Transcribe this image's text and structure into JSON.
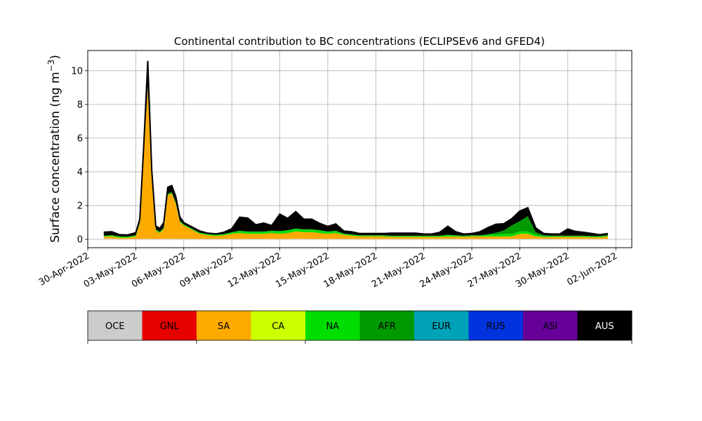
{
  "chart_data": {
    "type": "area",
    "title": "Continental contribution to BC concentrations (ECLIPSEv6 and GFED4)",
    "ylabel": "Surface concentration (ng m⁻³)",
    "ylabel_main": "Surface concentration (ng m",
    "ylabel_exp": "−3",
    "ylabel_close": ")",
    "xlabel": "",
    "ylim": [
      -0.5,
      11.2
    ],
    "yticks": [
      0,
      2,
      4,
      6,
      8,
      10
    ],
    "xlim": [
      "2022-04-30T00:00",
      "2022-06-03T00:00"
    ],
    "xticks": [
      "2022-04-30",
      "2022-05-03",
      "2022-05-06",
      "2022-05-09",
      "2022-05-12",
      "2022-05-15",
      "2022-05-18",
      "2022-05-21",
      "2022-05-24",
      "2022-05-27",
      "2022-05-30",
      "2022-06-02"
    ],
    "xtick_labels": [
      "30-Apr-2022",
      "03-May-2022",
      "06-May-2022",
      "09-May-2022",
      "12-May-2022",
      "15-May-2022",
      "18-May-2022",
      "21-May-2022",
      "24-May-2022",
      "27-May-2022",
      "30-May-2022",
      "02-Jun-2022"
    ],
    "grid": true,
    "stacking_note": "stacked from bottom",
    "x": [
      "2022-05-01T00:00",
      "2022-05-01T12:00",
      "2022-05-02T00:00",
      "2022-05-02T12:00",
      "2022-05-03T00:00",
      "2022-05-03T06:00",
      "2022-05-03T12:00",
      "2022-05-03T18:00",
      "2022-05-04T00:00",
      "2022-05-04T06:00",
      "2022-05-04T12:00",
      "2022-05-04T18:00",
      "2022-05-05T00:00",
      "2022-05-05T06:00",
      "2022-05-05T12:00",
      "2022-05-05T18:00",
      "2022-05-06T00:00",
      "2022-05-06T12:00",
      "2022-05-07T00:00",
      "2022-05-07T12:00",
      "2022-05-08T00:00",
      "2022-05-08T12:00",
      "2022-05-09T00:00",
      "2022-05-09T12:00",
      "2022-05-10T00:00",
      "2022-05-10T12:00",
      "2022-05-11T00:00",
      "2022-05-11T12:00",
      "2022-05-12T00:00",
      "2022-05-12T12:00",
      "2022-05-13T00:00",
      "2022-05-13T12:00",
      "2022-05-14T00:00",
      "2022-05-14T12:00",
      "2022-05-15T00:00",
      "2022-05-15T12:00",
      "2022-05-16T00:00",
      "2022-05-16T12:00",
      "2022-05-17T00:00",
      "2022-05-17T12:00",
      "2022-05-18T00:00",
      "2022-05-18T12:00",
      "2022-05-19T00:00",
      "2022-05-19T12:00",
      "2022-05-20T00:00",
      "2022-05-20T12:00",
      "2022-05-21T00:00",
      "2022-05-21T12:00",
      "2022-05-22T00:00",
      "2022-05-22T12:00",
      "2022-05-23T00:00",
      "2022-05-23T12:00",
      "2022-05-24T00:00",
      "2022-05-24T12:00",
      "2022-05-25T00:00",
      "2022-05-25T12:00",
      "2022-05-26T00:00",
      "2022-05-26T12:00",
      "2022-05-27T00:00",
      "2022-05-27T12:00",
      "2022-05-28T00:00",
      "2022-05-28T12:00",
      "2022-05-29T00:00",
      "2022-05-29T12:00",
      "2022-05-30T00:00",
      "2022-05-30T12:00",
      "2022-05-31T00:00",
      "2022-05-31T12:00",
      "2022-06-01T00:00",
      "2022-06-01T12:00"
    ],
    "series": [
      {
        "name": "OCE",
        "color": "#cccccc",
        "values": [
          0.03,
          0.03,
          0.02,
          0.02,
          0.02,
          0.02,
          0.02,
          0.02,
          0.02,
          0.02,
          0.02,
          0.02,
          0.02,
          0.02,
          0.02,
          0.02,
          0.02,
          0.02,
          0.02,
          0.02,
          0.02,
          0.02,
          0.02,
          0.02,
          0.02,
          0.02,
          0.02,
          0.02,
          0.02,
          0.02,
          0.02,
          0.02,
          0.02,
          0.02,
          0.02,
          0.02,
          0.02,
          0.02,
          0.02,
          0.02,
          0.02,
          0.02,
          0.02,
          0.02,
          0.02,
          0.02,
          0.02,
          0.02,
          0.02,
          0.02,
          0.02,
          0.02,
          0.02,
          0.02,
          0.02,
          0.02,
          0.02,
          0.02,
          0.02,
          0.02,
          0.02,
          0.02,
          0.02,
          0.02,
          0.02,
          0.02,
          0.02,
          0.02,
          0.02,
          0.02
        ]
      },
      {
        "name": "SA",
        "color": "#ffaa00",
        "values": [
          0.12,
          0.15,
          0.08,
          0.07,
          0.15,
          0.9,
          5.0,
          9.0,
          3.5,
          0.5,
          0.35,
          0.6,
          2.6,
          2.7,
          2.1,
          1.0,
          0.8,
          0.55,
          0.3,
          0.22,
          0.18,
          0.22,
          0.3,
          0.35,
          0.3,
          0.3,
          0.3,
          0.35,
          0.3,
          0.35,
          0.45,
          0.4,
          0.4,
          0.35,
          0.3,
          0.35,
          0.25,
          0.2,
          0.15,
          0.15,
          0.15,
          0.15,
          0.12,
          0.12,
          0.12,
          0.12,
          0.12,
          0.12,
          0.12,
          0.15,
          0.15,
          0.12,
          0.15,
          0.15,
          0.15,
          0.15,
          0.15,
          0.15,
          0.3,
          0.3,
          0.15,
          0.12,
          0.12,
          0.12,
          0.12,
          0.12,
          0.12,
          0.1,
          0.1,
          0.15
        ]
      },
      {
        "name": "NA",
        "color": "#00dd00",
        "values": [
          0.05,
          0.05,
          0.05,
          0.05,
          0.05,
          0.05,
          0.05,
          0.05,
          0.05,
          0.05,
          0.05,
          0.05,
          0.05,
          0.05,
          0.05,
          0.05,
          0.05,
          0.05,
          0.05,
          0.05,
          0.05,
          0.05,
          0.08,
          0.12,
          0.12,
          0.12,
          0.12,
          0.12,
          0.15,
          0.15,
          0.15,
          0.15,
          0.15,
          0.15,
          0.12,
          0.12,
          0.05,
          0.05,
          0.05,
          0.05,
          0.05,
          0.05,
          0.05,
          0.05,
          0.05,
          0.05,
          0.05,
          0.05,
          0.05,
          0.08,
          0.05,
          0.05,
          0.05,
          0.05,
          0.1,
          0.12,
          0.15,
          0.15,
          0.15,
          0.15,
          0.1,
          0.05,
          0.05,
          0.05,
          0.05,
          0.05,
          0.05,
          0.05,
          0.05,
          0.05
        ]
      },
      {
        "name": "AFR",
        "color": "#009900",
        "values": [
          0.02,
          0.02,
          0.02,
          0.02,
          0.02,
          0.02,
          0.02,
          0.02,
          0.02,
          0.02,
          0.02,
          0.02,
          0.02,
          0.02,
          0.02,
          0.02,
          0.02,
          0.02,
          0.02,
          0.02,
          0.02,
          0.02,
          0.02,
          0.02,
          0.02,
          0.02,
          0.02,
          0.02,
          0.02,
          0.02,
          0.02,
          0.02,
          0.02,
          0.02,
          0.02,
          0.02,
          0.02,
          0.02,
          0.02,
          0.02,
          0.02,
          0.02,
          0.02,
          0.02,
          0.02,
          0.02,
          0.02,
          0.02,
          0.02,
          0.02,
          0.02,
          0.02,
          0.02,
          0.02,
          0.02,
          0.1,
          0.2,
          0.5,
          0.6,
          0.9,
          0.15,
          0.05,
          0.02,
          0.02,
          0.02,
          0.02,
          0.02,
          0.02,
          0.02,
          0.02
        ]
      },
      {
        "name": "AUS",
        "color": "#000000",
        "values": [
          0.2,
          0.2,
          0.1,
          0.1,
          0.15,
          0.2,
          0.5,
          1.5,
          0.5,
          0.2,
          0.2,
          0.3,
          0.4,
          0.4,
          0.35,
          0.25,
          0.1,
          0.1,
          0.1,
          0.05,
          0.05,
          0.1,
          0.2,
          0.8,
          0.8,
          0.4,
          0.5,
          0.3,
          1.0,
          0.7,
          1.0,
          0.6,
          0.6,
          0.4,
          0.3,
          0.4,
          0.15,
          0.15,
          0.1,
          0.1,
          0.1,
          0.1,
          0.15,
          0.15,
          0.15,
          0.15,
          0.1,
          0.1,
          0.2,
          0.5,
          0.2,
          0.1,
          0.1,
          0.2,
          0.4,
          0.5,
          0.4,
          0.4,
          0.6,
          0.5,
          0.25,
          0.1,
          0.1,
          0.1,
          0.4,
          0.25,
          0.2,
          0.15,
          0.08,
          0.1
        ]
      }
    ],
    "colorbar": {
      "labels": [
        "OCE",
        "GNL",
        "SA",
        "CA",
        "NA",
        "AFR",
        "EUR",
        "RUS",
        "ASI",
        "AUS"
      ],
      "colors": [
        "#cccccc",
        "#e60000",
        "#ffaa00",
        "#ccff00",
        "#00dd00",
        "#009900",
        "#00a2b8",
        "#0033dd",
        "#660099",
        "#000000"
      ],
      "label_colors": [
        "#000000",
        "#000000",
        "#000000",
        "#000000",
        "#000000",
        "#000000",
        "#000000",
        "#000000",
        "#000000",
        "#ffffff"
      ]
    }
  }
}
